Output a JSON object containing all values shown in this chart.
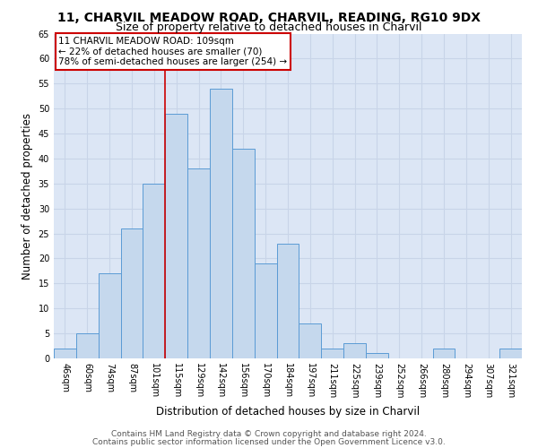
{
  "title_line1": "11, CHARVIL MEADOW ROAD, CHARVIL, READING, RG10 9DX",
  "title_line2": "Size of property relative to detached houses in Charvil",
  "xlabel": "Distribution of detached houses by size in Charvil",
  "ylabel": "Number of detached properties",
  "bin_labels": [
    "46sqm",
    "60sqm",
    "74sqm",
    "87sqm",
    "101sqm",
    "115sqm",
    "129sqm",
    "142sqm",
    "156sqm",
    "170sqm",
    "184sqm",
    "197sqm",
    "211sqm",
    "225sqm",
    "239sqm",
    "252sqm",
    "266sqm",
    "280sqm",
    "294sqm",
    "307sqm",
    "321sqm"
  ],
  "bar_heights": [
    2,
    5,
    17,
    26,
    35,
    49,
    38,
    54,
    42,
    19,
    23,
    7,
    2,
    3,
    1,
    0,
    0,
    2,
    0,
    0,
    2
  ],
  "bar_color": "#c5d8ed",
  "bar_edge_color": "#5b9bd5",
  "annotation_line_color": "#cc0000",
  "annotation_box_text": "11 CHARVIL MEADOW ROAD: 109sqm\n← 22% of detached houses are smaller (70)\n78% of semi-detached houses are larger (254) →",
  "annotation_box_color": "white",
  "annotation_box_edge_color": "#cc0000",
  "ylim": [
    0,
    65
  ],
  "yticks": [
    0,
    5,
    10,
    15,
    20,
    25,
    30,
    35,
    40,
    45,
    50,
    55,
    60,
    65
  ],
  "grid_color": "#c8d4e8",
  "background_color": "#dce6f5",
  "footer_line1": "Contains HM Land Registry data © Crown copyright and database right 2024.",
  "footer_line2": "Contains public sector information licensed under the Open Government Licence v3.0.",
  "title1_fontsize": 10,
  "title2_fontsize": 9,
  "axis_label_fontsize": 8.5,
  "tick_fontsize": 7,
  "ann_fontsize": 7.5,
  "footer_fontsize": 6.5,
  "red_line_bar_index": 4.5
}
